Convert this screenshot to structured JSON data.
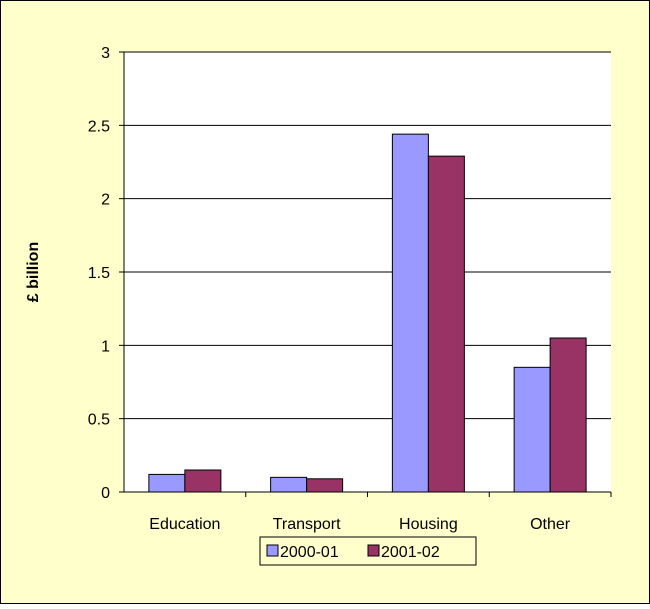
{
  "chart_data": {
    "type": "bar",
    "title": "",
    "xlabel": "",
    "ylabel": "£ billion",
    "categories": [
      "Education",
      "Transport",
      "Housing",
      "Other"
    ],
    "series": [
      {
        "name": "2000-01",
        "values": [
          0.12,
          0.1,
          2.44,
          0.85
        ],
        "color": "#9999ff"
      },
      {
        "name": "2001-02",
        "values": [
          0.15,
          0.09,
          2.29,
          1.05
        ],
        "color": "#993366"
      }
    ],
    "ylim": [
      0,
      3
    ],
    "yticks": [
      "0",
      "0.5",
      "1",
      "1.5",
      "2",
      "2.5",
      "3"
    ],
    "grid": true,
    "legend_position": "bottom",
    "background_color": "#ffffcc",
    "plot_background_color": "#ffffff"
  }
}
